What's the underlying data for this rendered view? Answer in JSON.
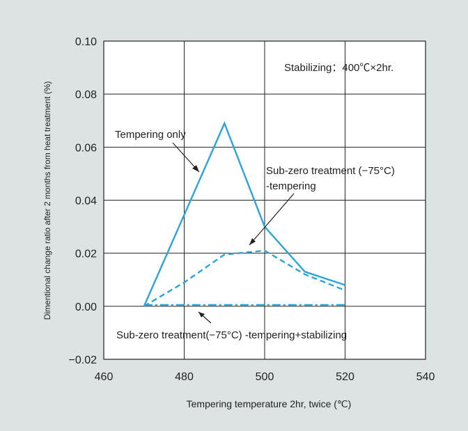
{
  "chart_data": {
    "type": "line",
    "xlabel": "Tempering temperature 2hr, twice (℃)",
    "ylabel": "Dimentional change ratio after 2 months from heat treatment (%)",
    "xlim": [
      460,
      540
    ],
    "ylim": [
      -0.02,
      0.1
    ],
    "x_ticks": [
      "460",
      "480",
      "500",
      "520",
      "540"
    ],
    "y_ticks": [
      "0.10",
      "0.08",
      "0.06",
      "0.04",
      "0.02",
      "0.00",
      "−0.02"
    ],
    "grid": true,
    "series": [
      {
        "name": "Tempering only",
        "style": "solid",
        "color": "#2aa5dc",
        "x": [
          470,
          490,
          500,
          510,
          520
        ],
        "y": [
          0.0,
          0.069,
          0.03,
          0.013,
          0.008
        ]
      },
      {
        "name": "Sub-zero treatment (−75°C) -tempering",
        "style": "dashed",
        "color": "#2aa5dc",
        "x": [
          470,
          480,
          490,
          500,
          510,
          520
        ],
        "y": [
          0.0,
          0.009,
          0.0195,
          0.021,
          0.012,
          0.006
        ]
      },
      {
        "name": "Sub-zero treatment(−75°C) -tempering+stabilizing",
        "style": "dashdot",
        "color": "#2aa5dc",
        "x": [
          470,
          480,
          490,
          500,
          510,
          520
        ],
        "y": [
          0.0005,
          0.0005,
          0.0005,
          0.0005,
          0.0005,
          0.0005
        ]
      }
    ],
    "annotations": {
      "stabilizing": "Stabilizing：400℃×2hr.",
      "tempering_only": "Tempering only",
      "subzero_line1": "Sub-zero treatment (−75°C)",
      "subzero_line2": "-tempering",
      "subzero_stab": "Sub-zero treatment(−75°C) -tempering+stabilizing"
    }
  }
}
